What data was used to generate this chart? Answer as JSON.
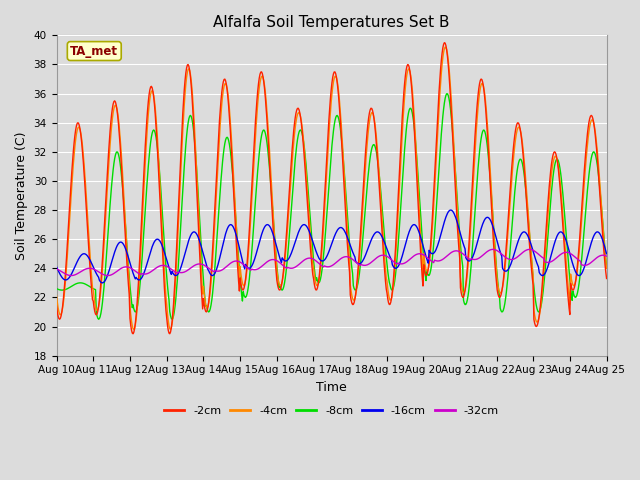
{
  "title": "Alfalfa Soil Temperatures Set B",
  "xlabel": "Time",
  "ylabel": "Soil Temperature (C)",
  "ylim": [
    18,
    40
  ],
  "xlim": [
    0,
    15
  ],
  "bg_color": "#dcdcdc",
  "plot_bg_color": "#dcdcdc",
  "grid_color": "#ffffff",
  "x_tick_labels": [
    "Aug 10",
    "Aug 11",
    "Aug 12",
    "Aug 13",
    "Aug 14",
    "Aug 15",
    "Aug 16",
    "Aug 17",
    "Aug 18",
    "Aug 19",
    "Aug 20",
    "Aug 21",
    "Aug 22",
    "Aug 23",
    "Aug 24",
    "Aug 25"
  ],
  "annotation_text": "TA_met",
  "annotation_color": "#8B0000",
  "annotation_bg": "#ffffcc",
  "annotation_edge": "#aaaa00",
  "legend_entries": [
    "-2cm",
    "-4cm",
    "-8cm",
    "-16cm",
    "-32cm"
  ],
  "line_colors": [
    "#ff2200",
    "#ff8800",
    "#00dd00",
    "#0000ee",
    "#cc00cc"
  ],
  "title_fontsize": 11,
  "axis_fontsize": 9,
  "tick_fontsize": 7.5
}
